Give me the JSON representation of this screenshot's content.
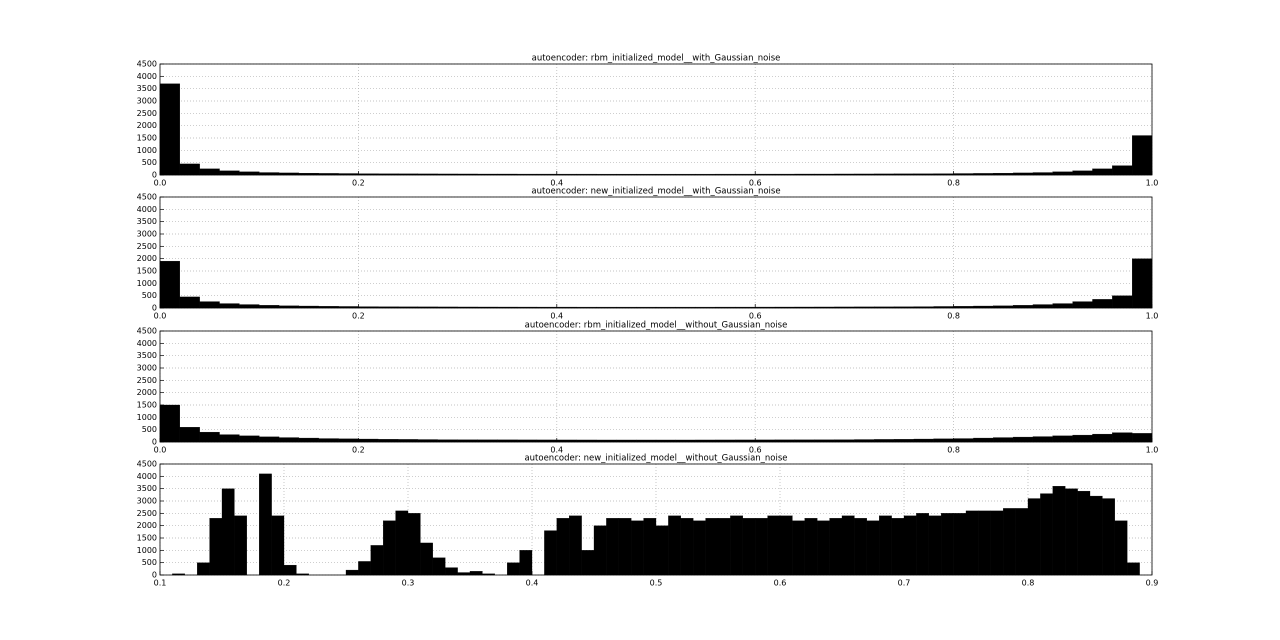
{
  "chart_data": [
    {
      "type": "histogram",
      "title": "autoencoder: rbm_initialized_model__with_Gaussian_noise",
      "color": "#000000",
      "grid": true,
      "bins": [
        0,
        0.02,
        0.04,
        0.06,
        0.08,
        0.1,
        0.12,
        0.14,
        0.16,
        0.18,
        0.2,
        0.22,
        0.24,
        0.26,
        0.28,
        0.3,
        0.32,
        0.34,
        0.36,
        0.38,
        0.4,
        0.42,
        0.44,
        0.46,
        0.48,
        0.5,
        0.52,
        0.54,
        0.56,
        0.58,
        0.6,
        0.62,
        0.64,
        0.66,
        0.68,
        0.7,
        0.72,
        0.74,
        0.76,
        0.78,
        0.8,
        0.82,
        0.84,
        0.86,
        0.88,
        0.9,
        0.92,
        0.94,
        0.96,
        0.98,
        1
      ],
      "values": [
        3700,
        450,
        250,
        170,
        130,
        100,
        85,
        75,
        65,
        60,
        55,
        50,
        48,
        45,
        43,
        42,
        40,
        40,
        38,
        38,
        37,
        37,
        36,
        36,
        36,
        36,
        36,
        36,
        37,
        37,
        38,
        38,
        40,
        40,
        42,
        43,
        45,
        48,
        50,
        55,
        60,
        65,
        75,
        85,
        100,
        130,
        170,
        250,
        380,
        1600
      ],
      "xlim": [
        0,
        1
      ],
      "xticks": [
        {
          "value": 0,
          "label": "0.0"
        },
        0.2,
        0.4,
        0.6,
        0.8,
        {
          "value": 1,
          "label": "1.0"
        }
      ],
      "ylim": [
        0,
        4500
      ],
      "yticks": [
        0,
        500,
        1000,
        1500,
        2000,
        2500,
        3000,
        3500,
        4000,
        4500
      ]
    },
    {
      "type": "histogram",
      "title": "autoencoder: new_initialized_model__with_Gaussian_noise",
      "color": "#000000",
      "grid": true,
      "bins": [
        0,
        0.02,
        0.04,
        0.06,
        0.08,
        0.1,
        0.12,
        0.14,
        0.16,
        0.18,
        0.2,
        0.22,
        0.24,
        0.26,
        0.28,
        0.3,
        0.32,
        0.34,
        0.36,
        0.38,
        0.4,
        0.42,
        0.44,
        0.46,
        0.48,
        0.5,
        0.52,
        0.54,
        0.56,
        0.58,
        0.6,
        0.62,
        0.64,
        0.66,
        0.68,
        0.7,
        0.72,
        0.74,
        0.76,
        0.78,
        0.8,
        0.82,
        0.84,
        0.86,
        0.88,
        0.9,
        0.92,
        0.94,
        0.96,
        0.98,
        1
      ],
      "values": [
        1900,
        450,
        260,
        180,
        140,
        110,
        90,
        80,
        70,
        62,
        56,
        52,
        48,
        46,
        44,
        42,
        41,
        40,
        39,
        38,
        38,
        37,
        37,
        37,
        37,
        37,
        37,
        37,
        38,
        38,
        39,
        40,
        41,
        42,
        44,
        46,
        48,
        52,
        56,
        62,
        70,
        80,
        90,
        110,
        140,
        180,
        260,
        350,
        500,
        2000
      ],
      "xlim": [
        0,
        1
      ],
      "xticks": [
        {
          "value": 0,
          "label": "0.0"
        },
        0.2,
        0.4,
        0.6,
        0.8,
        {
          "value": 1,
          "label": "1.0"
        }
      ],
      "ylim": [
        0,
        4500
      ],
      "yticks": [
        0,
        500,
        1000,
        1500,
        2000,
        2500,
        3000,
        3500,
        4000,
        4500
      ]
    },
    {
      "type": "histogram",
      "title": "autoencoder: rbm_initialized_model__without_Gaussian_noise",
      "color": "#000000",
      "grid": true,
      "bins": [
        0,
        0.02,
        0.04,
        0.06,
        0.08,
        0.1,
        0.12,
        0.14,
        0.16,
        0.18,
        0.2,
        0.22,
        0.24,
        0.26,
        0.28,
        0.3,
        0.32,
        0.34,
        0.36,
        0.38,
        0.4,
        0.42,
        0.44,
        0.46,
        0.48,
        0.5,
        0.52,
        0.54,
        0.56,
        0.58,
        0.6,
        0.62,
        0.64,
        0.66,
        0.68,
        0.7,
        0.72,
        0.74,
        0.76,
        0.78,
        0.8,
        0.82,
        0.84,
        0.86,
        0.88,
        0.9,
        0.92,
        0.94,
        0.96,
        0.98,
        1
      ],
      "values": [
        1500,
        600,
        400,
        300,
        250,
        210,
        180,
        160,
        140,
        130,
        120,
        110,
        105,
        100,
        95,
        92,
        90,
        88,
        86,
        85,
        84,
        83,
        82,
        82,
        82,
        82,
        82,
        83,
        84,
        85,
        86,
        88,
        90,
        92,
        95,
        100,
        105,
        110,
        120,
        130,
        140,
        160,
        180,
        200,
        220,
        250,
        280,
        320,
        380,
        350
      ],
      "xlim": [
        0,
        1
      ],
      "xticks": [
        {
          "value": 0,
          "label": "0.0"
        },
        0.2,
        0.4,
        0.6,
        0.8,
        {
          "value": 1,
          "label": "1.0"
        }
      ],
      "ylim": [
        0,
        4500
      ],
      "yticks": [
        0,
        500,
        1000,
        1500,
        2000,
        2500,
        3000,
        3500,
        4000,
        4500
      ]
    },
    {
      "type": "histogram",
      "title": "autoencoder: new_initialized_model__without_Gaussian_noise",
      "color": "#000000",
      "grid": true,
      "bins": [
        0.1,
        0.11,
        0.12,
        0.13,
        0.14,
        0.15,
        0.16,
        0.17,
        0.18,
        0.19,
        0.2,
        0.21,
        0.22,
        0.23,
        0.24,
        0.25,
        0.26,
        0.27,
        0.28,
        0.29,
        0.3,
        0.31,
        0.32,
        0.33,
        0.34,
        0.35,
        0.36,
        0.37,
        0.38,
        0.39,
        0.4,
        0.41,
        0.42,
        0.43,
        0.44,
        0.45,
        0.46,
        0.47,
        0.48,
        0.49,
        0.5,
        0.51,
        0.52,
        0.53,
        0.54,
        0.55,
        0.56,
        0.57,
        0.58,
        0.59,
        0.6,
        0.61,
        0.62,
        0.63,
        0.64,
        0.65,
        0.66,
        0.67,
        0.68,
        0.69,
        0.7,
        0.71,
        0.72,
        0.73,
        0.74,
        0.75,
        0.76,
        0.77,
        0.78,
        0.79,
        0.8,
        0.81,
        0.82,
        0.83,
        0.84,
        0.85,
        0.86,
        0.87,
        0.88,
        0.89,
        0.9
      ],
      "values": [
        0,
        50,
        0,
        500,
        2300,
        3500,
        2400,
        0,
        4100,
        2400,
        400,
        50,
        0,
        0,
        0,
        200,
        550,
        1200,
        2200,
        2600,
        2500,
        1300,
        700,
        300,
        100,
        150,
        50,
        0,
        500,
        1000,
        0,
        1800,
        2300,
        2400,
        1000,
        2000,
        2300,
        2300,
        2200,
        2300,
        2000,
        2400,
        2300,
        2200,
        2300,
        2300,
        2400,
        2300,
        2300,
        2400,
        2400,
        2200,
        2300,
        2200,
        2300,
        2400,
        2300,
        2200,
        2400,
        2300,
        2400,
        2500,
        2400,
        2500,
        2500,
        2600,
        2600,
        2600,
        2700,
        2700,
        3100,
        3300,
        3600,
        3500,
        3400,
        3200,
        3100,
        2200,
        500,
        0
      ],
      "xlim": [
        0.1,
        0.9
      ],
      "xticks": [
        0.1,
        0.2,
        0.3,
        0.4,
        0.5,
        0.6,
        0.7,
        0.8,
        0.9
      ],
      "ylim": [
        0,
        4500
      ],
      "yticks": [
        0,
        500,
        1000,
        1500,
        2000,
        2500,
        3000,
        3500,
        4000,
        4500
      ]
    }
  ]
}
